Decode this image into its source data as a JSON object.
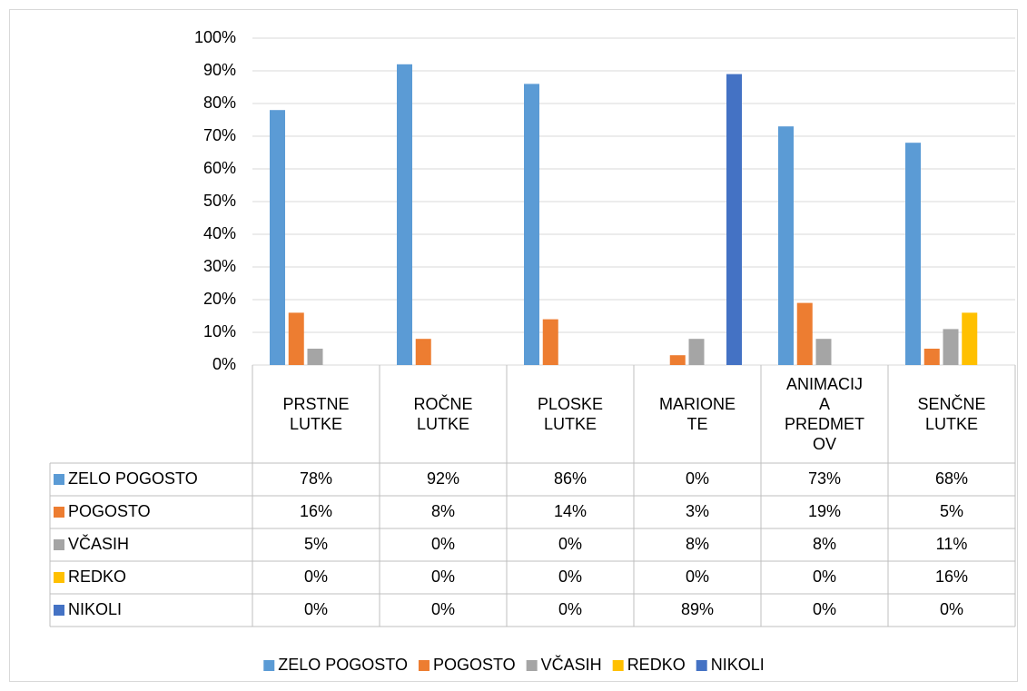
{
  "chart_data": {
    "type": "bar",
    "categories": [
      "PRSTNE LUTKE",
      "ROČNE LUTKE",
      "PLOSKE LUTKE",
      "MARIONETE",
      "ANIMACIJA PREDMETOV",
      "SENČNE LUTKE"
    ],
    "series": [
      {
        "name": "ZELO POGOSTO",
        "color": "#5b9bd5",
        "values": [
          78,
          92,
          86,
          0,
          73,
          68
        ],
        "value_labels": [
          "78%",
          "92%",
          "86%",
          "0%",
          "73%",
          "68%"
        ]
      },
      {
        "name": "POGOSTO",
        "color": "#ed7d31",
        "values": [
          16,
          8,
          14,
          3,
          19,
          5
        ],
        "value_labels": [
          "16%",
          "8%",
          "14%",
          "3%",
          "19%",
          "5%"
        ]
      },
      {
        "name": "VČASIH",
        "color": "#a5a5a5",
        "values": [
          5,
          0,
          0,
          8,
          8,
          11
        ],
        "value_labels": [
          "5%",
          "0%",
          "0%",
          "8%",
          "8%",
          "11%"
        ]
      },
      {
        "name": "REDKO",
        "color": "#ffc000",
        "values": [
          0,
          0,
          0,
          0,
          0,
          16
        ],
        "value_labels": [
          "0%",
          "0%",
          "0%",
          "0%",
          "0%",
          "16%"
        ]
      },
      {
        "name": "NIKOLI",
        "color": "#4472c4",
        "values": [
          0,
          0,
          0,
          89,
          0,
          0
        ],
        "value_labels": [
          "0%",
          "0%",
          "0%",
          "89%",
          "0%",
          "0%"
        ]
      }
    ],
    "ylim": [
      0,
      100
    ],
    "yticks": [
      {
        "value": 0,
        "label": "0%"
      },
      {
        "value": 10,
        "label": "10%"
      },
      {
        "value": 20,
        "label": "20%"
      },
      {
        "value": 30,
        "label": "30%"
      },
      {
        "value": 40,
        "label": "40%"
      },
      {
        "value": 50,
        "label": "50%"
      },
      {
        "value": 60,
        "label": "60%"
      },
      {
        "value": 70,
        "label": "70%"
      },
      {
        "value": 80,
        "label": "80%"
      },
      {
        "value": 90,
        "label": "90%"
      },
      {
        "value": 100,
        "label": "100%"
      }
    ],
    "grid": true,
    "legend": "bottom"
  }
}
